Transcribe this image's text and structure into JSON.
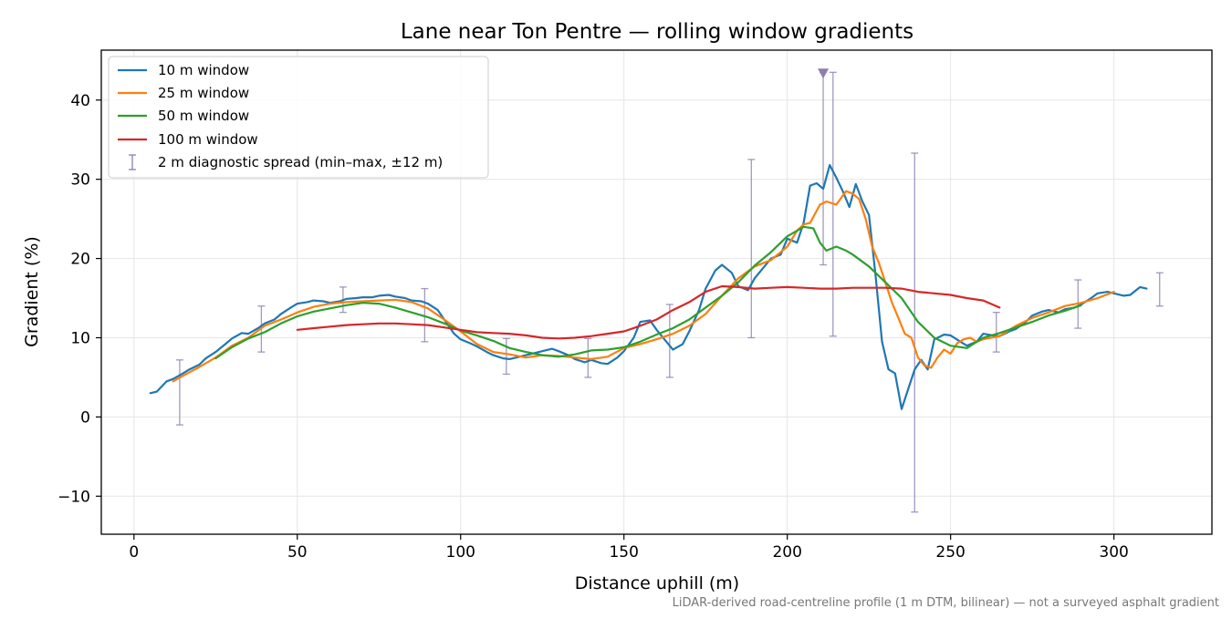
{
  "chart_data": {
    "type": "line",
    "title": "Lane near Ton Pentre — rolling window gradients",
    "xlabel": "Distance uphill (m)",
    "ylabel": "Gradient (%)",
    "xlim": [
      -10,
      330
    ],
    "ylim": [
      -14.8,
      46.3
    ],
    "xticks": [
      0,
      50,
      100,
      150,
      200,
      250,
      300
    ],
    "yticks": [
      -10,
      0,
      10,
      20,
      30,
      40
    ],
    "xtick_labels": [
      "0",
      "50",
      "100",
      "150",
      "200",
      "250",
      "300"
    ],
    "ytick_labels": [
      "−10",
      "0",
      "10",
      "20",
      "30",
      "40"
    ],
    "grid": true,
    "legend_position": "upper-left",
    "footnote": "LiDAR-derived road-centreline profile (1 m DTM, bilinear) — not a surveyed asphalt gradient",
    "series": [
      {
        "name": "10 m window",
        "color": "#1f77b4",
        "x": [
          5,
          7,
          10,
          12,
          15,
          17,
          20,
          22,
          25,
          28,
          30,
          33,
          35,
          38,
          40,
          43,
          45,
          48,
          50,
          53,
          55,
          58,
          60,
          63,
          65,
          68,
          70,
          73,
          75,
          78,
          80,
          83,
          85,
          88,
          90,
          93,
          95,
          98,
          100,
          103,
          105,
          108,
          110,
          113,
          115,
          118,
          120,
          123,
          125,
          128,
          130,
          133,
          135,
          138,
          140,
          143,
          145,
          148,
          150,
          153,
          155,
          158,
          160,
          163,
          165,
          168,
          170,
          173,
          175,
          178,
          180,
          183,
          185,
          188,
          190,
          193,
          195,
          198,
          200,
          203,
          205,
          207,
          209,
          211,
          213,
          215,
          217,
          219,
          221,
          223,
          225,
          227,
          229,
          231,
          233,
          235,
          237,
          239,
          241,
          243,
          245,
          248,
          250,
          253,
          255,
          258,
          260,
          263,
          265,
          268,
          270,
          273,
          275,
          278,
          280,
          283,
          285,
          288,
          290,
          293,
          295,
          298,
          300,
          303,
          305,
          308,
          310
        ],
        "y": [
          3.0,
          3.2,
          4.5,
          4.8,
          5.5,
          6.0,
          6.6,
          7.4,
          8.2,
          9.2,
          9.9,
          10.6,
          10.5,
          11.2,
          11.8,
          12.3,
          13.0,
          13.8,
          14.3,
          14.5,
          14.7,
          14.6,
          14.4,
          14.6,
          14.9,
          15.0,
          15.1,
          15.1,
          15.3,
          15.4,
          15.2,
          15.0,
          14.7,
          14.6,
          14.3,
          13.5,
          12.3,
          10.5,
          9.8,
          9.3,
          8.9,
          8.2,
          7.8,
          7.4,
          7.3,
          7.6,
          7.8,
          8.1,
          8.3,
          8.6,
          8.3,
          7.8,
          7.3,
          6.9,
          7.2,
          6.8,
          6.7,
          7.5,
          8.3,
          10.0,
          12.0,
          12.2,
          11.0,
          9.5,
          8.5,
          9.2,
          10.8,
          13.5,
          16.2,
          18.5,
          19.2,
          18.2,
          16.5,
          16.0,
          17.5,
          19.0,
          20.0,
          20.5,
          22.5,
          22.0,
          24.5,
          29.2,
          29.5,
          28.8,
          31.8,
          30.2,
          28.5,
          26.5,
          29.4,
          27.2,
          25.5,
          18.0,
          9.5,
          6.0,
          5.5,
          1.0,
          3.5,
          6.0,
          7.2,
          6.0,
          9.8,
          10.4,
          10.3,
          9.5,
          9.0,
          9.5,
          10.5,
          10.3,
          10.2,
          10.8,
          11.1,
          12.0,
          12.8,
          13.3,
          13.5,
          13.2,
          13.6,
          13.8,
          14.2,
          15.0,
          15.6,
          15.8,
          15.6,
          15.3,
          15.4,
          16.4,
          16.2
        ]
      },
      {
        "name": "25 m window",
        "color": "#ff7f0e",
        "x": [
          12,
          15,
          20,
          25,
          30,
          35,
          40,
          45,
          50,
          55,
          60,
          65,
          70,
          75,
          80,
          85,
          90,
          95,
          100,
          105,
          110,
          115,
          120,
          125,
          130,
          135,
          140,
          145,
          150,
          155,
          160,
          165,
          170,
          175,
          180,
          185,
          190,
          195,
          200,
          203,
          205,
          207,
          210,
          212,
          215,
          218,
          220,
          222,
          224,
          226,
          228,
          230,
          232,
          234,
          236,
          238,
          240,
          242,
          244,
          246,
          248,
          250,
          252,
          254,
          256,
          258,
          260,
          265,
          270,
          275,
          280,
          285,
          290,
          295,
          300
        ],
        "y": [
          4.5,
          5.2,
          6.3,
          7.5,
          9.0,
          10.0,
          11.5,
          12.3,
          13.2,
          13.9,
          14.3,
          14.5,
          14.6,
          14.7,
          14.8,
          14.5,
          13.7,
          12.3,
          10.8,
          9.2,
          8.2,
          7.9,
          7.5,
          7.8,
          7.7,
          7.5,
          7.3,
          7.6,
          8.7,
          9.2,
          9.8,
          10.5,
          11.5,
          13.0,
          15.3,
          17.5,
          19.0,
          19.8,
          21.5,
          23.5,
          24.3,
          24.5,
          26.8,
          27.2,
          26.8,
          28.5,
          28.2,
          27.5,
          25.0,
          21.5,
          19.5,
          17.0,
          14.5,
          12.5,
          10.5,
          10.0,
          7.5,
          6.5,
          6.2,
          7.5,
          8.5,
          8.0,
          9.3,
          9.8,
          10.0,
          9.5,
          9.8,
          10.2,
          11.5,
          12.5,
          13.2,
          14.0,
          14.4,
          15.0,
          15.8
        ]
      },
      {
        "name": "50 m window",
        "color": "#2ca02c",
        "x": [
          25,
          30,
          35,
          40,
          45,
          50,
          55,
          60,
          65,
          70,
          75,
          80,
          85,
          90,
          95,
          100,
          105,
          110,
          115,
          120,
          125,
          130,
          135,
          140,
          145,
          150,
          155,
          160,
          165,
          170,
          175,
          180,
          185,
          190,
          195,
          200,
          203,
          205,
          208,
          210,
          212,
          215,
          218,
          220,
          225,
          230,
          235,
          240,
          245,
          250,
          255,
          260,
          265,
          270,
          275,
          280,
          285,
          290
        ],
        "y": [
          7.4,
          8.8,
          9.9,
          10.7,
          11.8,
          12.7,
          13.3,
          13.7,
          14.1,
          14.4,
          14.3,
          13.8,
          13.2,
          12.6,
          11.8,
          10.9,
          10.3,
          9.6,
          8.7,
          8.2,
          7.8,
          7.6,
          7.9,
          8.4,
          8.5,
          8.8,
          9.5,
          10.4,
          11.2,
          12.3,
          13.8,
          15.3,
          17.0,
          19.1,
          20.8,
          22.8,
          23.5,
          24.0,
          23.8,
          22.0,
          21.0,
          21.5,
          21.0,
          20.5,
          19.0,
          17.0,
          15.0,
          12.0,
          10.0,
          9.0,
          8.7,
          10.0,
          10.6,
          11.3,
          12.0,
          12.8,
          13.4,
          14.1
        ]
      },
      {
        "name": "100 m window",
        "color": "#d62728",
        "x": [
          50,
          55,
          60,
          65,
          70,
          75,
          80,
          85,
          90,
          95,
          100,
          105,
          110,
          115,
          120,
          125,
          130,
          135,
          140,
          145,
          150,
          155,
          160,
          165,
          170,
          175,
          180,
          185,
          190,
          195,
          200,
          205,
          210,
          215,
          220,
          225,
          230,
          235,
          240,
          245,
          250,
          255,
          260,
          265
        ],
        "y": [
          11.0,
          11.2,
          11.4,
          11.6,
          11.7,
          11.8,
          11.8,
          11.7,
          11.6,
          11.3,
          11.0,
          10.7,
          10.6,
          10.5,
          10.3,
          10.0,
          9.9,
          10.0,
          10.2,
          10.5,
          10.8,
          11.5,
          12.3,
          13.5,
          14.5,
          15.8,
          16.5,
          16.4,
          16.2,
          16.3,
          16.4,
          16.3,
          16.2,
          16.2,
          16.3,
          16.3,
          16.3,
          16.2,
          15.8,
          15.6,
          15.4,
          15.0,
          14.7,
          13.8
        ]
      }
    ],
    "errorbars": {
      "name": "2 m diagnostic spread (min–max, ±12 m)",
      "color": "#8c7fb0",
      "x": [
        14,
        39,
        64,
        89,
        114,
        139,
        164,
        189,
        211,
        214,
        239,
        264,
        289,
        314
      ],
      "low": [
        -1.0,
        8.2,
        13.2,
        9.5,
        5.4,
        5.0,
        5.0,
        10.0,
        19.2,
        10.2,
        -12.0,
        8.2,
        11.2,
        14.0
      ],
      "high": [
        7.2,
        14.0,
        16.4,
        16.2,
        9.9,
        9.9,
        14.2,
        32.5,
        43.5,
        43.5,
        33.3,
        13.2,
        17.3,
        18.2
      ]
    },
    "marker": {
      "shape": "triangle-down",
      "x": 211,
      "y": 43.4,
      "color": "#8c7fb0"
    }
  }
}
